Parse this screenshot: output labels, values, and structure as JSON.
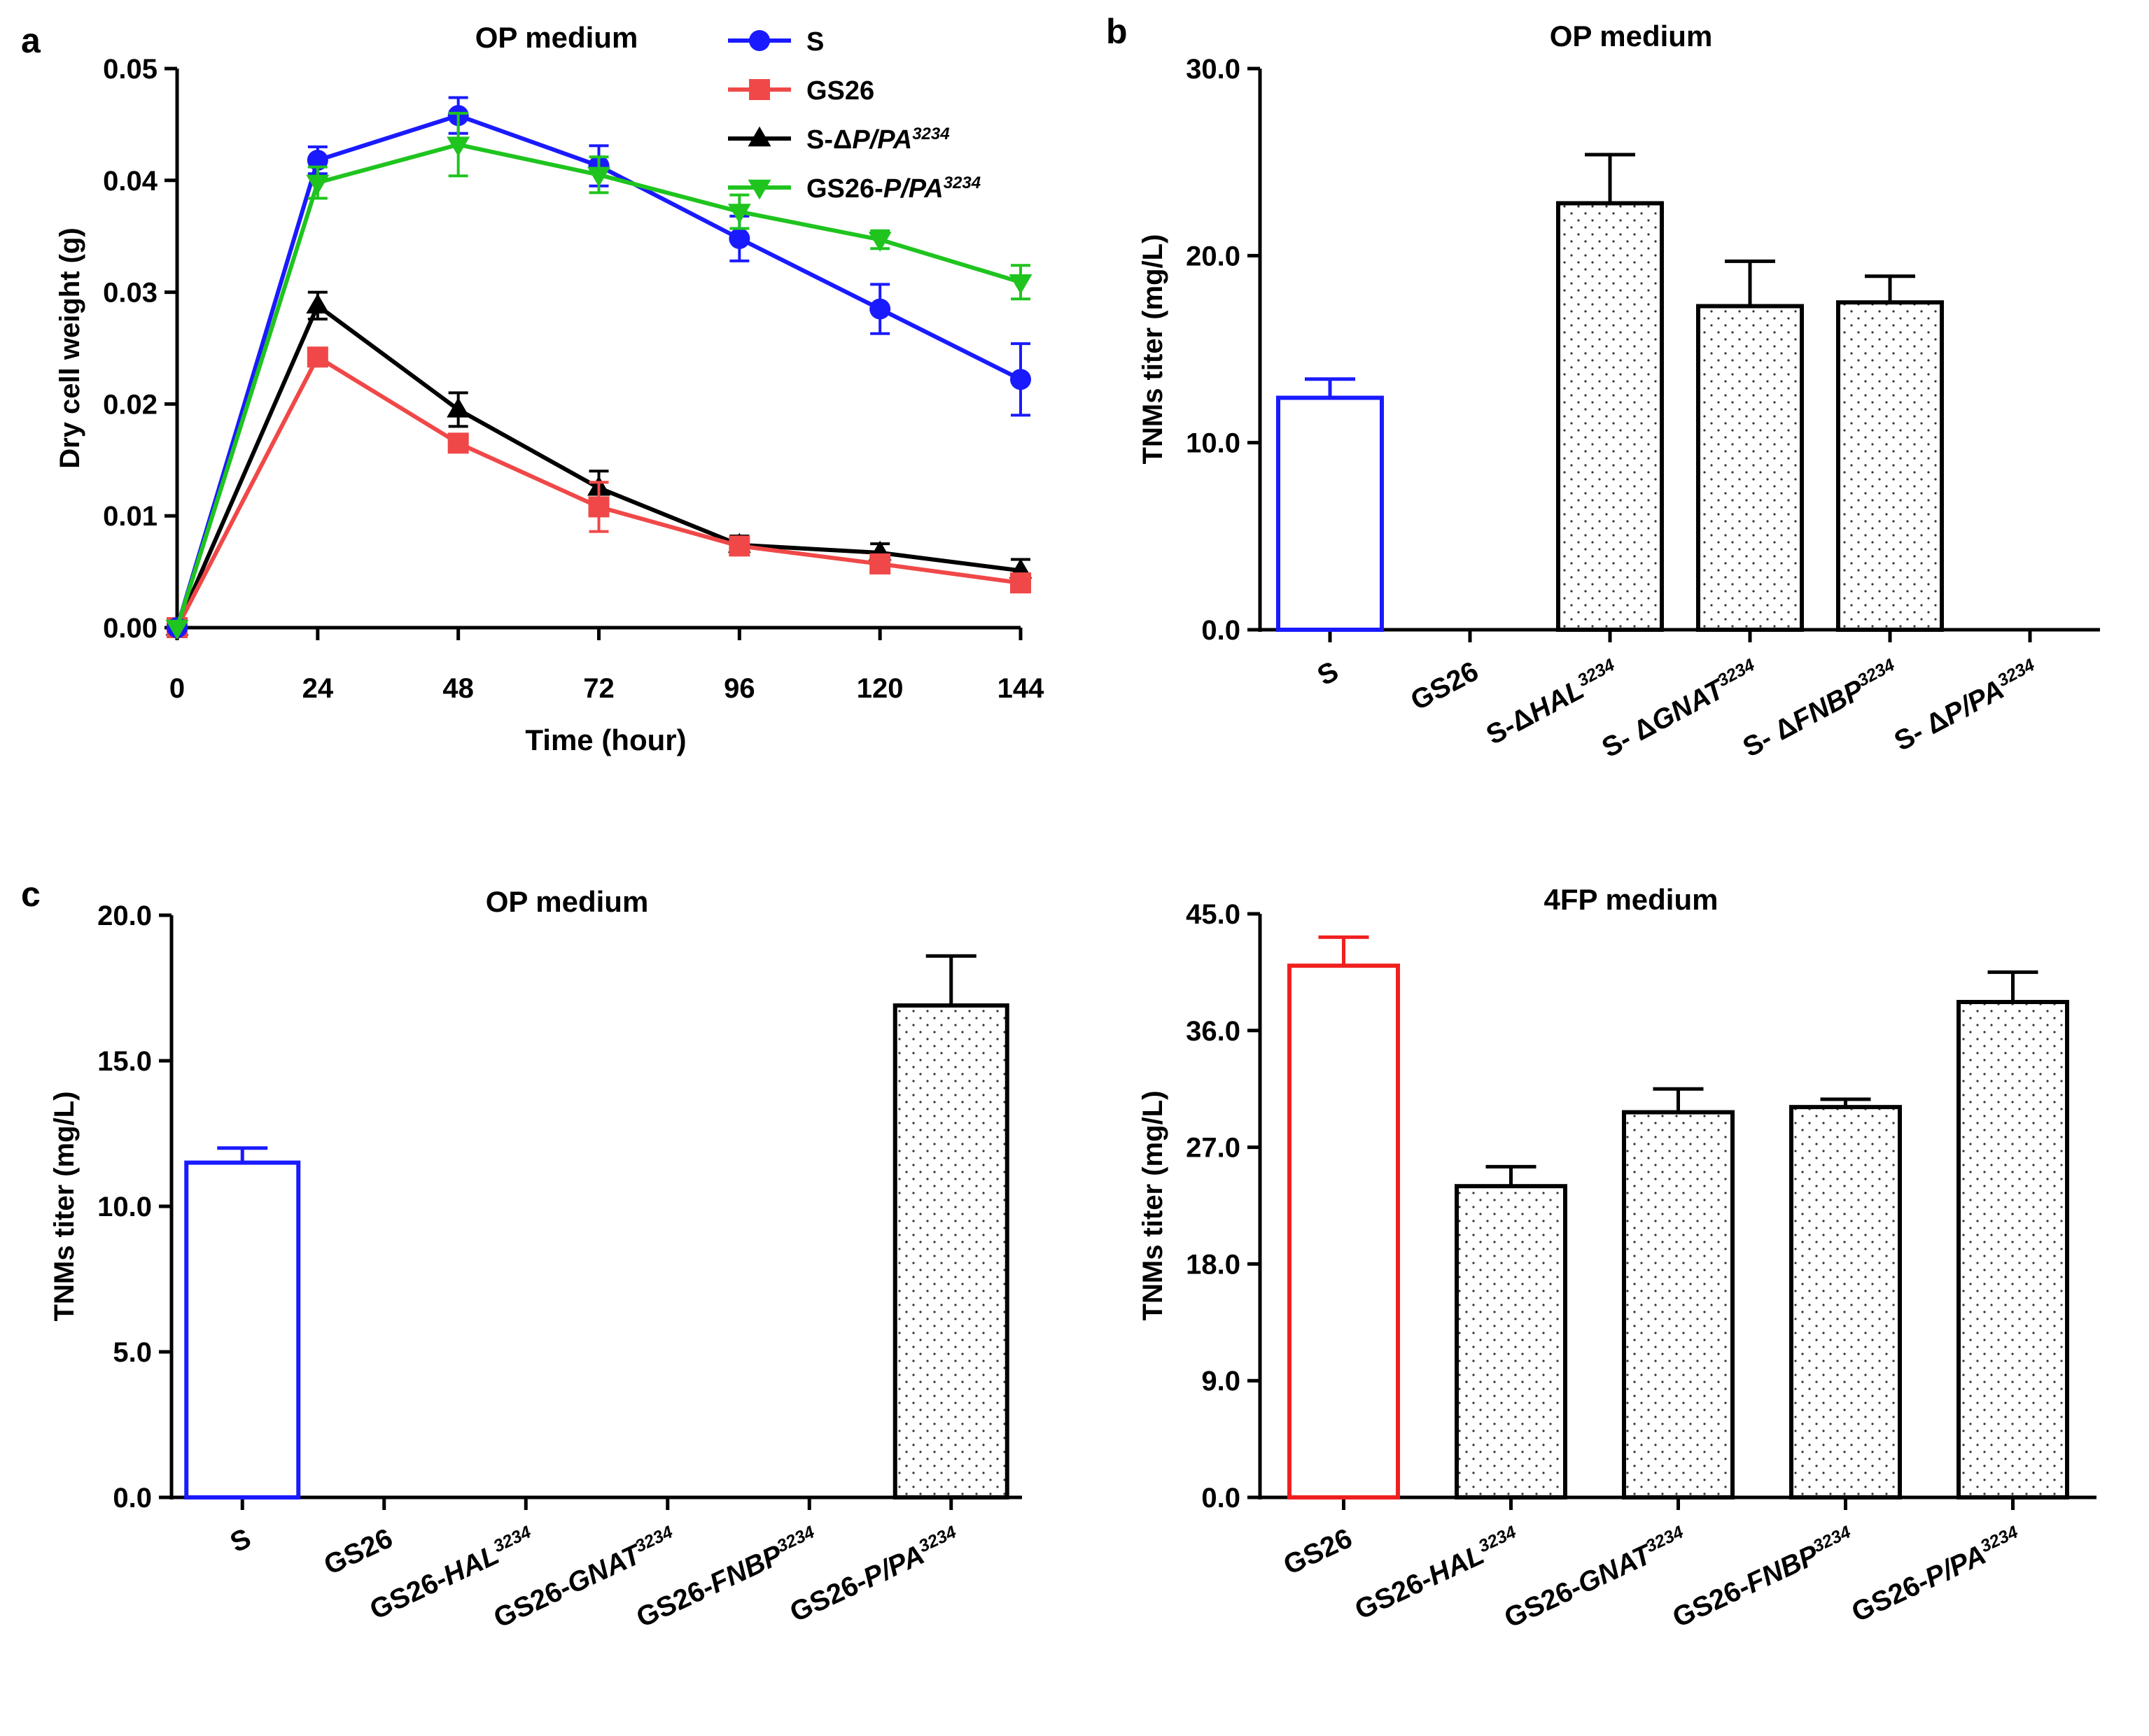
{
  "panels": {
    "a": {
      "letter": "a"
    },
    "b": {
      "letter": "b"
    },
    "c": {
      "letter": "c"
    }
  },
  "chart_data": [
    {
      "id": "a",
      "type": "line",
      "title": "OP medium",
      "xlabel": "Time (hour)",
      "ylabel": "Dry cell weight (g)",
      "xlim": [
        0,
        144
      ],
      "ylim": [
        0,
        0.05
      ],
      "xticks": [
        0,
        24,
        48,
        72,
        96,
        120,
        144
      ],
      "xtick_labels": [
        "0",
        "24",
        "48",
        "72",
        "96",
        "120",
        "144"
      ],
      "yticks": [
        0,
        0.01,
        0.02,
        0.03,
        0.04,
        0.05
      ],
      "ytick_labels": [
        "0.00",
        "0.01",
        "0.02",
        "0.03",
        "0.04",
        "0.05"
      ],
      "legend_position": "top-right",
      "x": [
        0,
        24,
        48,
        72,
        96,
        120,
        144
      ],
      "series": [
        {
          "name": "S",
          "legend_parts": [
            [
              "S",
              false
            ]
          ],
          "color": "#1a1aff",
          "marker": "circle",
          "values": [
            0.0,
            0.0418,
            0.0458,
            0.0413,
            0.0348,
            0.0285,
            0.0222
          ],
          "errors": [
            0.0,
            0.0012,
            0.0016,
            0.0018,
            0.002,
            0.0022,
            0.0032
          ]
        },
        {
          "name": "GS26",
          "legend_parts": [
            [
              "GS26",
              false
            ]
          ],
          "color": "#f04848",
          "marker": "square",
          "values": [
            0.0,
            0.0242,
            0.0165,
            0.0108,
            0.0073,
            0.0057,
            0.004
          ],
          "errors": [
            0.0,
            0.0006,
            0.0006,
            0.0022,
            0.0006,
            0.0008,
            0.0006
          ]
        },
        {
          "name": "S-ΔP/PA3234",
          "legend_parts": [
            [
              "S-Δ",
              false
            ],
            [
              "P/PA",
              true
            ],
            [
              "3234",
              "sup"
            ]
          ],
          "color": "#000000",
          "marker": "triangle-up",
          "values": [
            0.0,
            0.0288,
            0.0195,
            0.0125,
            0.0074,
            0.0067,
            0.0051
          ],
          "errors": [
            0.0,
            0.0012,
            0.0015,
            0.0015,
            0.0008,
            0.0008,
            0.001
          ]
        },
        {
          "name": "GS26-P/PA3234",
          "legend_parts": [
            [
              "GS26-",
              false
            ],
            [
              "P/PA",
              true
            ],
            [
              "3234",
              "sup"
            ]
          ],
          "color": "#1fc41f",
          "marker": "triangle-down",
          "values": [
            0.0,
            0.0398,
            0.0432,
            0.0405,
            0.0372,
            0.0347,
            0.0309
          ],
          "errors": [
            0.0,
            0.0014,
            0.0028,
            0.0016,
            0.0015,
            0.0008,
            0.0015
          ]
        }
      ]
    },
    {
      "id": "b",
      "type": "bar",
      "title": "OP medium",
      "ylabel": "TNMs titer (mg/L)",
      "ylim": [
        0,
        30
      ],
      "yticks": [
        0,
        10,
        20,
        30
      ],
      "ytick_labels": [
        "0.0",
        "10.0",
        "20.0",
        "30.0"
      ],
      "categories": [
        "S",
        "GS26",
        "S-ΔHAL3234",
        "S- ΔGNAT3234",
        "S- ΔFNBP3234",
        "S- ΔP/PA3234"
      ],
      "category_parts": [
        [
          [
            "S",
            false
          ]
        ],
        [
          [
            "GS26",
            false
          ]
        ],
        [
          [
            "S-Δ",
            false
          ],
          [
            "HAL",
            true
          ],
          [
            "3234",
            "sup"
          ]
        ],
        [
          [
            "S- Δ",
            false
          ],
          [
            "GNAT",
            true
          ],
          [
            "3234",
            "sup"
          ]
        ],
        [
          [
            "S- Δ",
            false
          ],
          [
            "FNBP",
            true
          ],
          [
            "3234",
            "sup"
          ]
        ],
        [
          [
            "S- Δ",
            false
          ],
          [
            "P/PA",
            true
          ],
          [
            "3234",
            "sup"
          ]
        ]
      ],
      "values": [
        12.4,
        0,
        22.8,
        17.3,
        17.5,
        0
      ],
      "errors": [
        1.0,
        0,
        2.6,
        2.4,
        1.4,
        0
      ],
      "styles": [
        "outline-blue",
        "none",
        "dots",
        "dots",
        "dots",
        "none"
      ]
    },
    {
      "id": "c1",
      "type": "bar",
      "title": "OP medium",
      "ylabel": "TNMs titer (mg/L)",
      "ylim": [
        0,
        20
      ],
      "yticks": [
        0,
        5,
        10,
        15,
        20
      ],
      "ytick_labels": [
        "0.0",
        "5.0",
        "10.0",
        "15.0",
        "20.0"
      ],
      "categories": [
        "S",
        "GS26",
        "GS26-HAL3234",
        "GS26-GNAT3234",
        "GS26-FNBP3234",
        "GS26-P/PA3234"
      ],
      "category_parts": [
        [
          [
            "S",
            false
          ]
        ],
        [
          [
            "GS26",
            false
          ]
        ],
        [
          [
            "GS26-",
            false
          ],
          [
            "HAL",
            true
          ],
          [
            "3234",
            "sup"
          ]
        ],
        [
          [
            "GS26-",
            false
          ],
          [
            "GNAT",
            true
          ],
          [
            "3234",
            "sup"
          ]
        ],
        [
          [
            "GS26-",
            false
          ],
          [
            "FNBP",
            true
          ],
          [
            "3234",
            "sup"
          ]
        ],
        [
          [
            "GS26-",
            false
          ],
          [
            "P/PA",
            true
          ],
          [
            "3234",
            "sup"
          ]
        ]
      ],
      "values": [
        11.5,
        0,
        0,
        0,
        0,
        16.9
      ],
      "errors": [
        0.5,
        0,
        0,
        0,
        0,
        1.7
      ],
      "styles": [
        "outline-blue",
        "none",
        "none",
        "none",
        "none",
        "dots"
      ]
    },
    {
      "id": "c2",
      "type": "bar",
      "title": "4FP medium",
      "ylabel": "TNMs titer (mg/L)",
      "ylim": [
        0,
        45
      ],
      "yticks": [
        0,
        9,
        18,
        27,
        36,
        45
      ],
      "ytick_labels": [
        "0.0",
        "9.0",
        "18.0",
        "27.0",
        "36.0",
        "45.0"
      ],
      "categories": [
        "GS26",
        "GS26-HAL3234",
        "GS26-GNAT3234",
        "GS26-FNBP3234",
        "GS26-P/PA3234"
      ],
      "category_parts": [
        [
          [
            "GS26",
            false
          ]
        ],
        [
          [
            "GS26-",
            false
          ],
          [
            "HAL",
            true
          ],
          [
            "3234",
            "sup"
          ]
        ],
        [
          [
            "GS26-",
            false
          ],
          [
            "GNAT",
            true
          ],
          [
            "3234",
            "sup"
          ]
        ],
        [
          [
            "GS26-",
            false
          ],
          [
            "FNBP",
            true
          ],
          [
            "3234",
            "sup"
          ]
        ],
        [
          [
            "GS26-",
            false
          ],
          [
            "P/PA",
            true
          ],
          [
            "3234",
            "sup"
          ]
        ]
      ],
      "values": [
        41.0,
        24.0,
        29.7,
        30.1,
        38.2
      ],
      "errors": [
        2.2,
        1.5,
        1.8,
        0.6,
        2.3
      ],
      "styles": [
        "outline-red",
        "dots",
        "dots",
        "dots",
        "dots"
      ]
    }
  ]
}
